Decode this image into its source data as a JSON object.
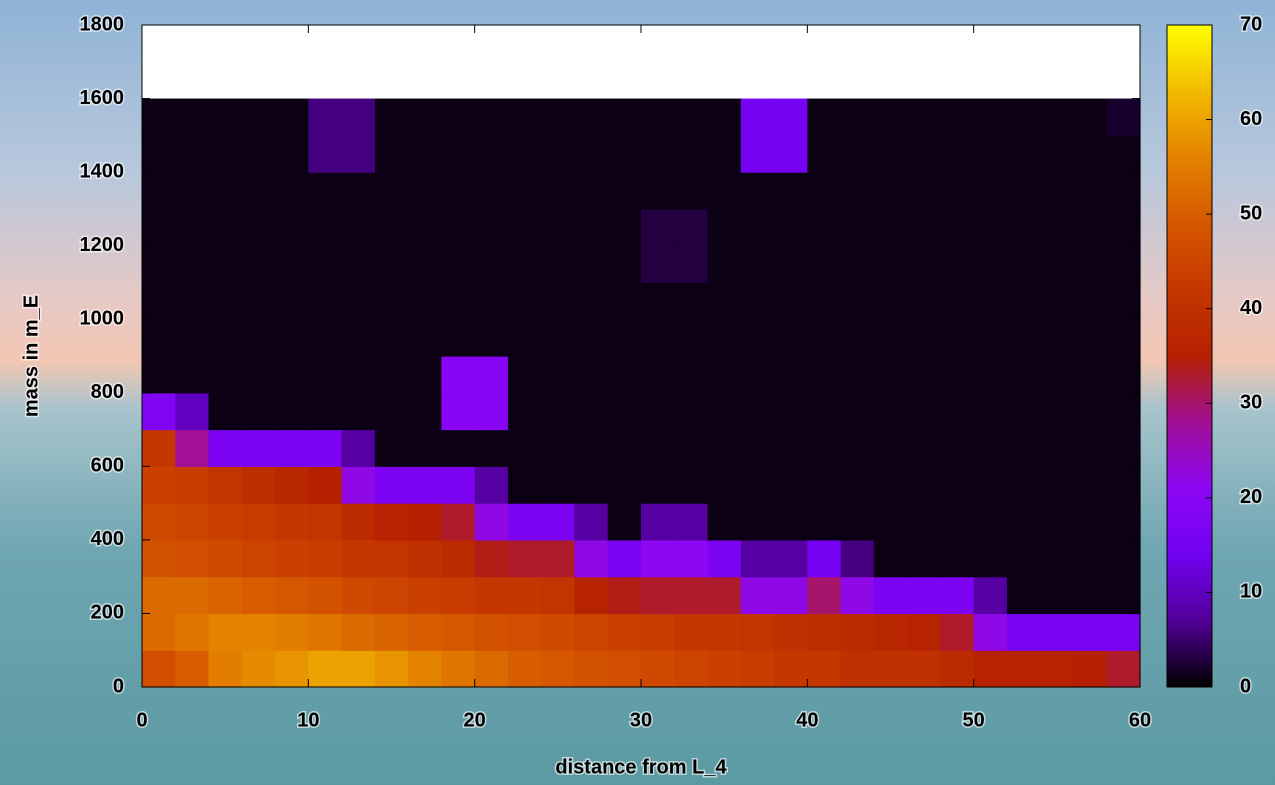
{
  "chart_data": {
    "type": "heatmap",
    "xlabel": "distance from L_4",
    "ylabel": "mass in m_E",
    "xlim": [
      0,
      60
    ],
    "ylim": [
      0,
      1800
    ],
    "xticks": [
      0,
      10,
      20,
      30,
      40,
      50,
      60
    ],
    "yticks": [
      0,
      200,
      400,
      600,
      800,
      1000,
      1200,
      1400,
      1600,
      1800
    ],
    "xbins": [
      0,
      2,
      4,
      6,
      8,
      10,
      12,
      14,
      16,
      18,
      20,
      22,
      24,
      26,
      28,
      30,
      32,
      34,
      36,
      38,
      40,
      42,
      44,
      46,
      48,
      50,
      52,
      54,
      56,
      58,
      60
    ],
    "ybins": [
      0,
      100,
      200,
      300,
      400,
      500,
      600,
      700,
      800,
      900,
      1000,
      1100,
      1200,
      1300,
      1400,
      1500,
      1600
    ],
    "z": [
      [
        47,
        50,
        55,
        57,
        58,
        60,
        60,
        58,
        56,
        54,
        52,
        50,
        49,
        48,
        47,
        46,
        45,
        44,
        43,
        42,
        42,
        40,
        40,
        40,
        38,
        36,
        36,
        36,
        35,
        33
      ],
      [
        52,
        54,
        56,
        56,
        55,
        54,
        52,
        51,
        50,
        49,
        48,
        47,
        46,
        45,
        44,
        43,
        42,
        42,
        41,
        40,
        39,
        38,
        37,
        36,
        33,
        22,
        16,
        16,
        16,
        16
      ],
      [
        52,
        52,
        51,
        50,
        49,
        48,
        46,
        45,
        44,
        43,
        42,
        42,
        41,
        36,
        34,
        33,
        33,
        33,
        22,
        22,
        30,
        22,
        17,
        17,
        17,
        8,
        1,
        1,
        1,
        1
      ],
      [
        48,
        47,
        46,
        45,
        44,
        43,
        42,
        41,
        40,
        38,
        34,
        33,
        33,
        22,
        17,
        21,
        21,
        17,
        8,
        8,
        15,
        6,
        1,
        1,
        1,
        1,
        1,
        1,
        1,
        1
      ],
      [
        46,
        45,
        44,
        43,
        42,
        41,
        38,
        36,
        35,
        33,
        22,
        17,
        17,
        8,
        1,
        8,
        8,
        1,
        1,
        1,
        1,
        1,
        1,
        1,
        1,
        1,
        1,
        1,
        1,
        1
      ],
      [
        44,
        43,
        41,
        39,
        37,
        35,
        22,
        17,
        17,
        17,
        8,
        1,
        1,
        1,
        1,
        1,
        1,
        1,
        1,
        1,
        1,
        1,
        1,
        1,
        1,
        1,
        1,
        1,
        1,
        1
      ],
      [
        42,
        28,
        17,
        17,
        17,
        17,
        8,
        1,
        1,
        1,
        1,
        1,
        1,
        1,
        1,
        1,
        1,
        1,
        1,
        1,
        1,
        1,
        1,
        1,
        1,
        1,
        1,
        1,
        1,
        1
      ],
      [
        18,
        10,
        1,
        1,
        1,
        1,
        1,
        1,
        1,
        20,
        20,
        1,
        1,
        1,
        1,
        1,
        1,
        1,
        1,
        1,
        1,
        1,
        1,
        1,
        1,
        1,
        1,
        1,
        1,
        1
      ],
      [
        1,
        1,
        1,
        1,
        1,
        1,
        1,
        1,
        1,
        20,
        20,
        1,
        1,
        1,
        1,
        1,
        1,
        1,
        1,
        1,
        1,
        1,
        1,
        1,
        1,
        1,
        1,
        1,
        1,
        1
      ],
      [
        1,
        1,
        1,
        1,
        1,
        1,
        1,
        1,
        1,
        1,
        1,
        1,
        1,
        1,
        1,
        1,
        1,
        1,
        1,
        1,
        1,
        1,
        1,
        1,
        1,
        1,
        1,
        1,
        1,
        1
      ],
      [
        1,
        1,
        1,
        1,
        1,
        1,
        1,
        1,
        1,
        1,
        1,
        1,
        1,
        1,
        1,
        1,
        1,
        1,
        1,
        1,
        1,
        1,
        1,
        1,
        1,
        1,
        1,
        1,
        1,
        1
      ],
      [
        1,
        1,
        1,
        1,
        1,
        1,
        1,
        1,
        1,
        1,
        1,
        1,
        1,
        1,
        1,
        3,
        3,
        1,
        1,
        1,
        1,
        1,
        1,
        1,
        1,
        1,
        1,
        1,
        1,
        1
      ],
      [
        1,
        1,
        1,
        1,
        1,
        1,
        1,
        1,
        1,
        1,
        1,
        1,
        1,
        1,
        1,
        3,
        3,
        1,
        1,
        1,
        1,
        1,
        1,
        1,
        1,
        1,
        1,
        1,
        1,
        1
      ],
      [
        1,
        1,
        1,
        1,
        1,
        1,
        1,
        1,
        1,
        1,
        1,
        1,
        1,
        1,
        1,
        1,
        1,
        1,
        1,
        1,
        1,
        1,
        1,
        1,
        1,
        1,
        1,
        1,
        1,
        1
      ],
      [
        1,
        1,
        1,
        1,
        1,
        6,
        6,
        1,
        1,
        1,
        1,
        1,
        1,
        1,
        1,
        1,
        1,
        1,
        15,
        15,
        1,
        1,
        1,
        1,
        1,
        1,
        1,
        1,
        1,
        1
      ],
      [
        1,
        1,
        1,
        1,
        1,
        6,
        6,
        1,
        1,
        1,
        1,
        1,
        1,
        1,
        1,
        1,
        1,
        1,
        15,
        15,
        1,
        1,
        1,
        1,
        1,
        1,
        1,
        1,
        1,
        2
      ]
    ],
    "clim": [
      0,
      70
    ],
    "cticks": [
      0,
      10,
      20,
      30,
      40,
      50,
      60,
      70
    ],
    "colormap": [
      "#000000",
      "#510096",
      "#7202f3",
      "#8c07f3",
      "#a11096",
      "#b42000",
      "#c63700",
      "#d55700",
      "#e48300",
      "#f2ba00",
      "#ffff00"
    ]
  }
}
